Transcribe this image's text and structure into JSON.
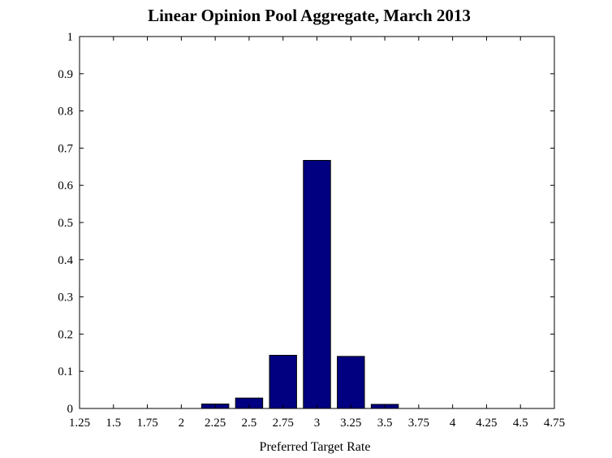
{
  "chart_data": {
    "type": "bar",
    "title": "Linear Opinion Pool Aggregate, March 2013",
    "xlabel": "Preferred Target Rate",
    "ylabel": "",
    "xlim": [
      1.25,
      4.75
    ],
    "ylim": [
      0,
      1
    ],
    "x_ticks": [
      "1.25",
      "1.5",
      "1.75",
      "2",
      "2.25",
      "2.5",
      "2.75",
      "3",
      "3.25",
      "3.5",
      "3.75",
      "4",
      "4.25",
      "4.5",
      "4.75"
    ],
    "y_ticks": [
      "0",
      "0.1",
      "0.2",
      "0.3",
      "0.4",
      "0.5",
      "0.6",
      "0.7",
      "0.8",
      "0.9",
      "1"
    ],
    "bar_width": 0.2,
    "grid": false,
    "bar_color": "#000080",
    "x": [
      2.25,
      2.5,
      2.75,
      3,
      3.25,
      3.5
    ],
    "values": [
      0.012,
      0.028,
      0.143,
      0.667,
      0.14,
      0.011
    ]
  }
}
